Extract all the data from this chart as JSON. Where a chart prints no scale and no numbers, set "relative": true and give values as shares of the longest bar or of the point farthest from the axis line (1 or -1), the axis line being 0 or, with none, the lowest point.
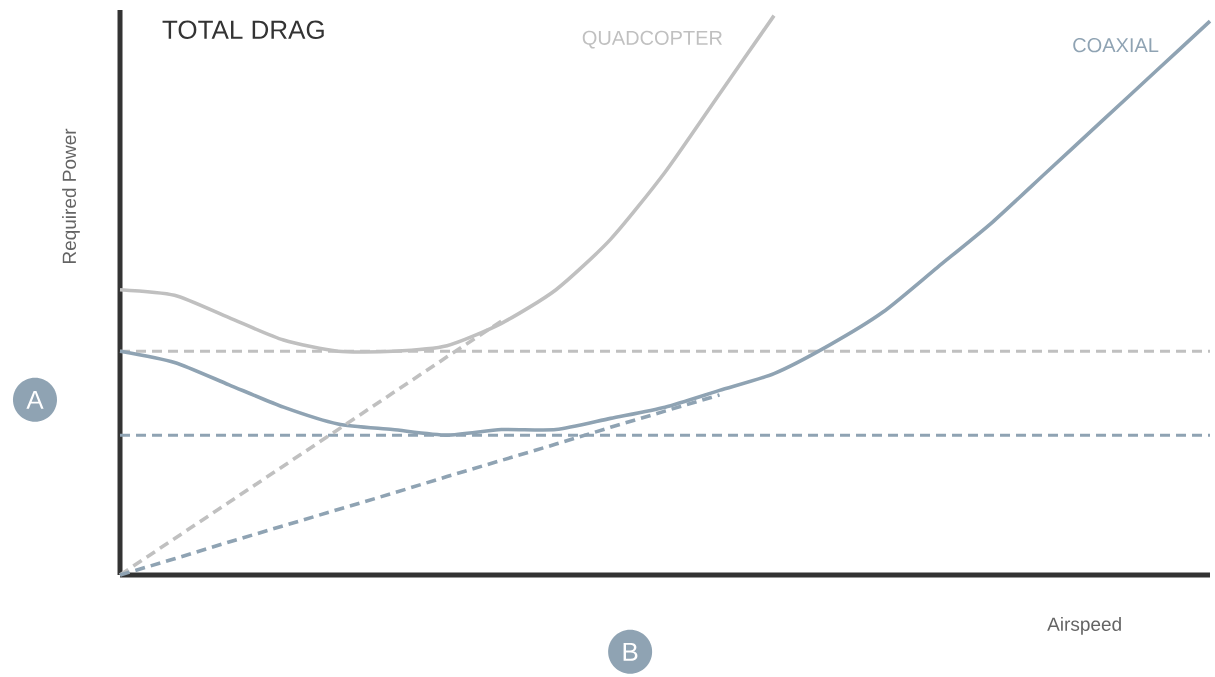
{
  "chart_data": {
    "type": "line",
    "relative": true,
    "title": "TOTAL DRAG",
    "xlabel": "Airspeed",
    "ylabel": "Required Power",
    "categories": [
      null,
      null,
      null,
      null,
      null,
      null,
      null,
      null,
      null,
      null,
      null,
      null,
      null,
      null,
      null,
      null,
      null,
      null,
      null,
      null,
      null
    ],
    "line_style": "solid",
    "series": [
      {
        "name": "QUADCOPTER",
        "color": "#c0c0c0",
        "values": [
          0.51,
          0.5,
          0.46,
          0.42,
          0.4,
          0.4,
          0.41,
          0.45,
          0.51,
          0.6,
          0.72,
          0.86,
          1.0,
          null,
          null,
          null,
          null,
          null,
          null,
          null,
          null
        ]
      },
      {
        "name": "COAXIAL",
        "color": "#8fa3b3",
        "values": [
          0.4,
          0.38,
          0.34,
          0.3,
          0.27,
          0.26,
          0.25,
          0.26,
          0.26,
          0.28,
          0.3,
          0.33,
          0.36,
          0.41,
          0.47,
          0.55,
          0.63,
          0.72,
          0.81,
          0.9,
          0.99
        ]
      },
      {
        "color": "#c0c0c0",
        "line_style": "dashed",
        "values": [
          0,
          0.065,
          0.13,
          0.195,
          0.26,
          0.325,
          0.39,
          0.454,
          null,
          null,
          null,
          null,
          null,
          null,
          null,
          null,
          null,
          null,
          null,
          null,
          null
        ]
      },
      {
        "color": "#8fa3b3",
        "line_style": "dashed",
        "values": [
          0,
          0.029,
          0.059,
          0.088,
          0.117,
          0.146,
          0.176,
          0.205,
          0.234,
          0.264,
          0.293,
          0.322,
          null,
          null,
          null,
          null,
          null,
          null,
          null,
          null,
          null
        ]
      }
    ],
    "ref_lines": [
      {
        "axis": "y",
        "value": 0.4,
        "color": "#c0c0c0",
        "line_style": "dashed"
      },
      {
        "axis": "y",
        "value": 0.25,
        "color": "#8fa3b3",
        "line_style": "dashed"
      }
    ],
    "annotations": [
      "A",
      "B"
    ]
  }
}
